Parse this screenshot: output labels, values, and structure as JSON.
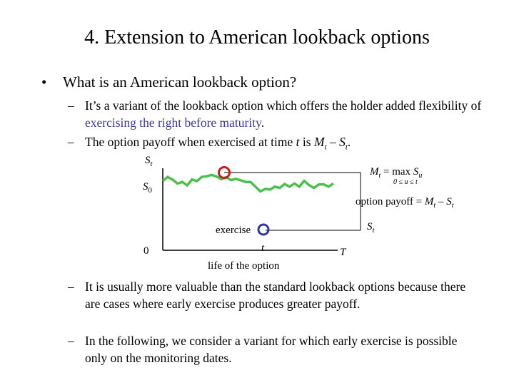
{
  "slide": {
    "title": "4. Extension to American lookback options",
    "bullet": {
      "marker": "•",
      "text": "What is an American lookback option?"
    },
    "sub_items": [
      {
        "dash": "–",
        "text_before": "It’s a variant of the lookback option which offers the holder added flexibility of ",
        "highlight": "exercising the right before maturity",
        "text_after": "."
      },
      {
        "dash": "–",
        "text_before": "The option payoff when exercised at time ",
        "t": "t",
        "is": " is ",
        "M": "M",
        "sub_t1": "t",
        "minus": " – ",
        "S": "S",
        "sub_t2": "t",
        "period": "."
      },
      {
        "dash": "–",
        "text": "It is usually more valuable than the standard lookback options because there are cases where early exercise produces greater payoff."
      },
      {
        "dash": "–",
        "text": "In the following, we consider a variant for which early exercise is possible only on the monitoring dates."
      }
    ]
  },
  "diagram": {
    "y_axis_label_main": "S",
    "y_axis_label_sub": "t",
    "s0_main": "S",
    "s0_sub": "0",
    "origin_label": "0",
    "t_label": "t",
    "T_label": "T",
    "life_label": "life of the option",
    "exercise_label": "exercise",
    "max_label": {
      "M": "M",
      "M_sub": "t",
      "eq": " = max ",
      "S": "S",
      "S_sub": "u",
      "range": "0 ≤ u ≤ t"
    },
    "payoff_label": {
      "text": "option payoff = ",
      "M": "M",
      "M_sub": "t",
      "minus": " – ",
      "S": "S",
      "S_sub": "t"
    },
    "st_label_main": "S",
    "st_label_sub": "t",
    "colors": {
      "path": "#4cc04c",
      "max_marker": "#cc1b1b",
      "exercise_marker": "#2e3aa0",
      "axis": "#000000"
    },
    "path_values": [
      0.45,
      0.72,
      0.55,
      0.3,
      0.4,
      0.18,
      0.56,
      0.45,
      0.72,
      0.76,
      0.85,
      0.75,
      0.58,
      0.7,
      0.52,
      0.6,
      0.5,
      0.4,
      0.4,
      0.1,
      -0.2,
      -0.05,
      -0.08,
      0.1,
      0.02,
      0.27,
      0.1,
      0.3,
      0.1,
      0.47,
      0.2,
      0.02,
      0.23,
      0.25,
      0.1,
      0.3
    ]
  }
}
